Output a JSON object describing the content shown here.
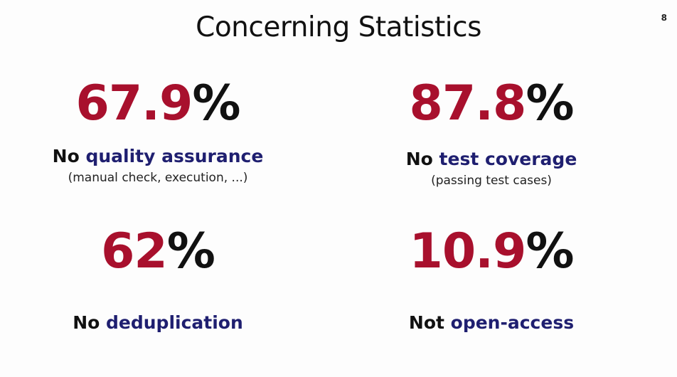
{
  "slide": {
    "title": "Concerning Statistics",
    "page_number": "8"
  },
  "stats": [
    {
      "number": "67.9",
      "percent": "%",
      "label_prefix": "No ",
      "label_highlight": "quality assurance",
      "note": "(manual check, execution, ...)"
    },
    {
      "number": "87.8",
      "percent": "%",
      "label_prefix": "No ",
      "label_highlight": "test coverage",
      "note": "(passing test cases)"
    },
    {
      "number": "62",
      "percent": "%",
      "label_prefix": "No ",
      "label_highlight": "deduplication",
      "note": ""
    },
    {
      "number": "10.9",
      "percent": "%",
      "label_prefix": "Not ",
      "label_highlight": "open-access",
      "note": ""
    }
  ],
  "colors": {
    "accent_number": "#a8102d",
    "highlight_text": "#1f1f70"
  }
}
